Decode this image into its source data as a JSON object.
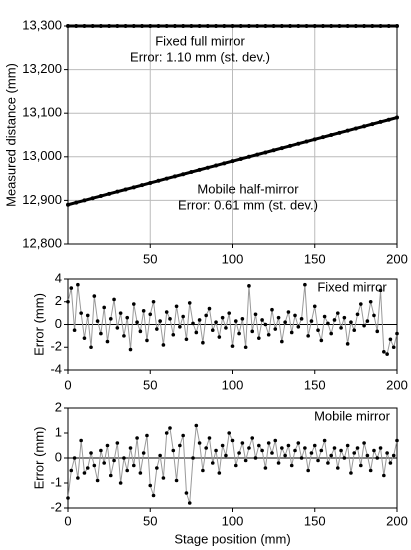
{
  "chart_data": [
    {
      "type": "line",
      "ylabel": "Measured distance (mm)",
      "annotations": [
        "Fixed full mirror",
        "Error: 1.10 mm (st. dev.)",
        "Mobile half-mirror",
        "Error: 0.61 mm (st. dev.)"
      ],
      "x": [
        0,
        5,
        10,
        15,
        20,
        25,
        30,
        35,
        40,
        45,
        50,
        55,
        60,
        65,
        70,
        75,
        80,
        85,
        90,
        95,
        100,
        105,
        110,
        115,
        120,
        125,
        130,
        135,
        140,
        145,
        150,
        155,
        160,
        165,
        170,
        175,
        180,
        185,
        190,
        195,
        200
      ],
      "series": [
        {
          "color": "#000000",
          "values": [
            13300,
            13300,
            13300,
            13300,
            13300,
            13300,
            13300,
            13300,
            13300,
            13300,
            13300,
            13300,
            13300,
            13300,
            13300,
            13300,
            13300,
            13300,
            13300,
            13300,
            13300,
            13300,
            13300,
            13300,
            13300,
            13300,
            13300,
            13300,
            13300,
            13300,
            13300,
            13300,
            13300,
            13300,
            13300,
            13300,
            13300,
            13300,
            13300,
            13300,
            13300
          ]
        },
        {
          "color": "#000000",
          "values": [
            12890,
            12895,
            12900,
            12905,
            12910,
            12915,
            12920,
            12925,
            12930,
            12935,
            12940,
            12945,
            12950,
            12955,
            12960,
            12965,
            12970,
            12975,
            12980,
            12985,
            12990,
            12995,
            13000,
            13005,
            13010,
            13015,
            13020,
            13025,
            13030,
            13035,
            13040,
            13045,
            13050,
            13055,
            13060,
            13065,
            13070,
            13075,
            13080,
            13085,
            13090
          ]
        }
      ],
      "xlim": [
        0,
        200
      ],
      "xticks": [
        50,
        100,
        150,
        200
      ],
      "ylim": [
        12800,
        13300
      ],
      "yticks": [
        {
          "value": 12800,
          "label": "12,800"
        },
        {
          "value": 12900,
          "label": "12,900"
        },
        {
          "value": 13000,
          "label": "13,000"
        },
        {
          "value": 13100,
          "label": "13,100"
        },
        {
          "value": 13200,
          "label": "13,200"
        },
        {
          "value": 13300,
          "label": "13,300"
        }
      ],
      "grid": true
    },
    {
      "type": "line",
      "ylabel": "Error (mm)",
      "annotations": [
        "Fixed mirror"
      ],
      "x": [
        0,
        2,
        4,
        6,
        8,
        10,
        12,
        14,
        16,
        18,
        20,
        22,
        24,
        26,
        28,
        30,
        32,
        34,
        36,
        38,
        40,
        42,
        44,
        46,
        48,
        50,
        52,
        54,
        56,
        58,
        60,
        62,
        64,
        66,
        68,
        70,
        72,
        74,
        76,
        78,
        80,
        82,
        84,
        86,
        88,
        90,
        92,
        94,
        96,
        98,
        100,
        102,
        104,
        106,
        108,
        110,
        112,
        114,
        116,
        118,
        120,
        122,
        124,
        126,
        128,
        130,
        132,
        134,
        136,
        138,
        140,
        142,
        144,
        146,
        148,
        150,
        152,
        154,
        156,
        158,
        160,
        162,
        164,
        166,
        168,
        170,
        172,
        174,
        176,
        178,
        180,
        182,
        184,
        186,
        188,
        190,
        192,
        194,
        196,
        198,
        200
      ],
      "series": [
        {
          "color": "#000000",
          "line_color": "#999999",
          "values": [
            2.0,
            3.2,
            -0.5,
            3.5,
            1.0,
            -1.2,
            0.8,
            -2.0,
            2.5,
            0.3,
            -0.8,
            1.5,
            -1.5,
            0.5,
            2.2,
            -0.3,
            1.0,
            -1.0,
            0.6,
            -2.2,
            1.8,
            0.2,
            -0.6,
            1.2,
            -1.4,
            0.9,
            2.0,
            -0.4,
            0.3,
            -1.8,
            1.1,
            0.5,
            -0.9,
            1.6,
            -0.2,
            0.7,
            -1.3,
            1.9,
            0.1,
            -0.7,
            0.4,
            -1.6,
            0.8,
            1.4,
            -0.5,
            0.2,
            -1.1,
            0.6,
            -0.3,
            1.0,
            -1.9,
            0.3,
            -0.8,
            0.5,
            -2.0,
            3.4,
            -0.6,
            0.9,
            -1.2,
            0.4,
            0.0,
            -0.9,
            1.3,
            -0.4,
            0.6,
            -1.5,
            0.2,
            1.1,
            -0.7,
            0.8,
            -0.2,
            0.5,
            3.5,
            -1.0,
            0.3,
            1.6,
            -0.5,
            -1.4,
            0.7,
            0.1,
            -0.8,
            0.4,
            1.0,
            -0.3,
            0.6,
            -1.7,
            0.2,
            -0.5,
            0.9,
            1.8,
            -0.1,
            0.3,
            2.0,
            0.8,
            -0.6,
            3.0,
            -2.4,
            -2.6,
            -1.3,
            -2.0,
            -0.8
          ]
        }
      ],
      "xlim": [
        0,
        200
      ],
      "xticks": [
        0,
        50,
        100,
        150,
        200
      ],
      "ylim": [
        -4,
        4
      ],
      "yticks": [
        -4,
        -2,
        0,
        2,
        4
      ],
      "zero_line": true
    },
    {
      "type": "line",
      "ylabel": "Error (mm)",
      "xlabel": "Stage position (mm)",
      "annotations": [
        "Mobile mirror"
      ],
      "x": [
        0,
        2,
        4,
        6,
        8,
        10,
        12,
        14,
        16,
        18,
        20,
        22,
        24,
        26,
        28,
        30,
        32,
        34,
        36,
        38,
        40,
        42,
        44,
        46,
        48,
        50,
        52,
        54,
        56,
        58,
        60,
        62,
        64,
        66,
        68,
        70,
        72,
        74,
        76,
        78,
        80,
        82,
        84,
        86,
        88,
        90,
        92,
        94,
        96,
        98,
        100,
        102,
        104,
        106,
        108,
        110,
        112,
        114,
        116,
        118,
        120,
        122,
        124,
        126,
        128,
        130,
        132,
        134,
        136,
        138,
        140,
        142,
        144,
        146,
        148,
        150,
        152,
        154,
        156,
        158,
        160,
        162,
        164,
        166,
        168,
        170,
        172,
        174,
        176,
        178,
        180,
        182,
        184,
        186,
        188,
        190,
        192,
        194,
        196,
        198,
        200
      ],
      "series": [
        {
          "color": "#000000",
          "line_color": "#999999",
          "values": [
            -1.6,
            -0.5,
            0.0,
            -0.8,
            0.7,
            -0.6,
            -0.4,
            0.2,
            -0.3,
            -0.9,
            0.3,
            -0.2,
            0.5,
            -0.7,
            -0.1,
            0.6,
            -1.0,
            0.0,
            -0.5,
            0.4,
            -0.3,
            0.8,
            -0.6,
            0.2,
            0.9,
            -1.1,
            -1.5,
            -0.4,
            0.1,
            -0.8,
            1.0,
            1.2,
            0.3,
            -0.9,
            0.5,
            0.9,
            -1.4,
            -1.8,
            0.0,
            1.3,
            0.6,
            -0.5,
            0.4,
            0.8,
            -0.2,
            0.3,
            -0.6,
            0.5,
            0.1,
            1.0,
            0.7,
            -0.3,
            0.2,
            0.6,
            -0.1,
            0.4,
            0.8,
            0.0,
            0.5,
            0.3,
            -0.4,
            0.6,
            0.2,
            0.7,
            -0.2,
            0.4,
            0.1,
            0.5,
            -0.3,
            0.3,
            0.6,
            0.0,
            0.4,
            -0.5,
            0.2,
            0.5,
            -0.1,
            0.3,
            0.7,
            -0.2,
            0.1,
            0.4,
            -0.4,
            0.3,
            0.0,
            0.5,
            -0.6,
            0.2,
            0.4,
            -0.3,
            0.6,
            0.1,
            -0.5,
            0.3,
            0.0,
            0.4,
            -0.7,
            0.2,
            -0.2,
            0.1,
            0.7
          ]
        }
      ],
      "xlim": [
        0,
        200
      ],
      "xticks": [
        0,
        50,
        100,
        150,
        200
      ],
      "ylim": [
        -2,
        2
      ],
      "yticks": [
        -2,
        -1,
        0,
        1,
        2
      ],
      "zero_line": true
    }
  ]
}
